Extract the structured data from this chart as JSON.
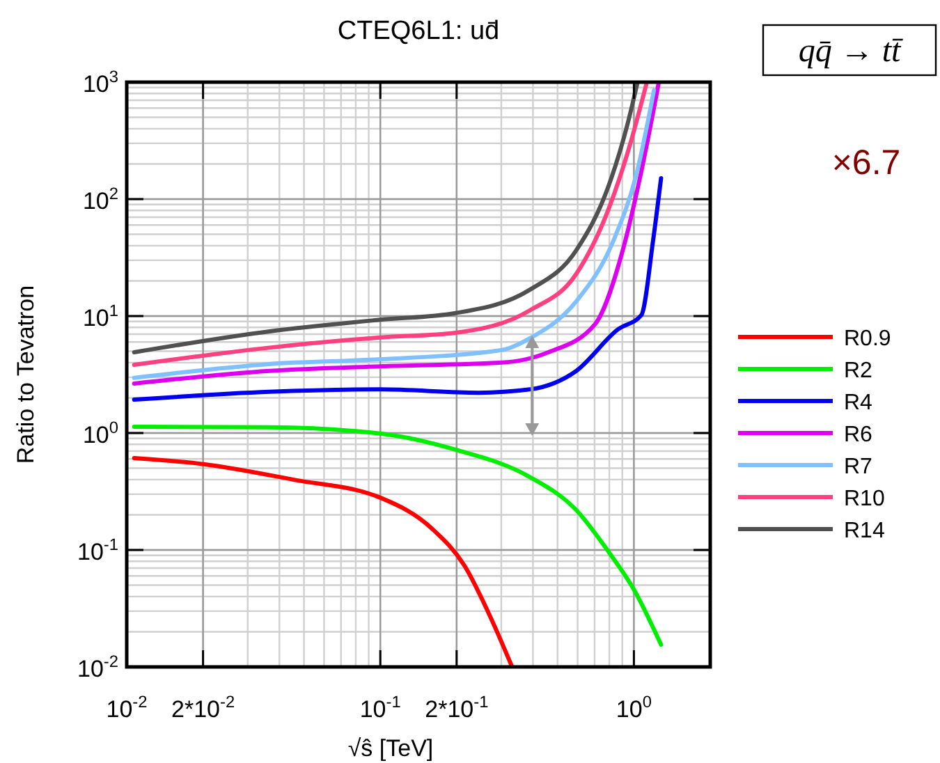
{
  "chart_data": {
    "type": "line",
    "title": "CTEQ6L1: ud̄",
    "xlabel": "√ŝ  [TeV]",
    "ylabel": "Ratio to Tevatron",
    "annotations": [
      "qq̄ → tt̄",
      "×6.7"
    ],
    "log": "xy",
    "grid": true,
    "legend": "right",
    "line_style": "solid",
    "xlim": [
      0.01,
      2
    ],
    "ylim": [
      0.01,
      1000
    ],
    "xticks": [
      {
        "value": 0.01,
        "label": "10$^{-2}$"
      },
      {
        "value": 0.02,
        "label": "2*10$^{-2}$"
      },
      {
        "value": 0.1,
        "label": "10$^{-1}$"
      },
      {
        "value": 0.2,
        "label": "2*10$^{-1}$"
      },
      {
        "value": 1,
        "label": "10$^{0}$"
      }
    ],
    "yticks": [
      {
        "value": 0.01,
        "label": "10$^{-2}$"
      },
      {
        "value": 0.1,
        "label": "10$^{-1}$"
      },
      {
        "value": 1,
        "label": "10$^{0}$"
      },
      {
        "value": 10,
        "label": "10$^{1}$"
      },
      {
        "value": 100,
        "label": "10$^{2}$"
      },
      {
        "value": 1000,
        "label": "10$^{3}$"
      }
    ],
    "series": [
      {
        "name": "R0.9",
        "color": "#ff0000",
        "x": [
          0.0107,
          0.0203,
          0.0452,
          0.1,
          0.16,
          0.215,
          0.277,
          0.331
        ],
        "values": [
          0.61,
          0.54,
          0.4,
          0.28,
          0.152,
          0.073,
          0.0244,
          0.01
        ]
      },
      {
        "name": "R2",
        "color": "#00ee00",
        "x": [
          0.0107,
          0.0366,
          0.1,
          0.198,
          0.389,
          0.593,
          0.796,
          1.0,
          1.28
        ],
        "values": [
          1.13,
          1.12,
          0.99,
          0.72,
          0.42,
          0.219,
          0.096,
          0.046,
          0.0155
        ]
      },
      {
        "name": "R4",
        "color": "#0000ee",
        "x": [
          0.0107,
          0.0366,
          0.1,
          0.244,
          0.389,
          0.593,
          0.865,
          1.07,
          1.19,
          1.28
        ],
        "values": [
          1.93,
          2.25,
          2.36,
          2.21,
          2.36,
          3.4,
          7.7,
          10.2,
          44,
          151
        ]
      },
      {
        "name": "R6",
        "color": "#dd00ee",
        "x": [
          0.0107,
          0.0366,
          0.1,
          0.302,
          0.46,
          0.702,
          0.904,
          1.07,
          1.25
        ],
        "values": [
          2.65,
          3.4,
          3.72,
          4.0,
          4.9,
          8.5,
          36.6,
          173,
          962
        ]
      },
      {
        "name": "R7",
        "color": "#80c0ff",
        "x": [
          0.0107,
          0.0366,
          0.1,
          0.302,
          0.389,
          0.593,
          0.83,
          1.03,
          1.2
        ],
        "values": [
          2.96,
          3.89,
          4.27,
          5.13,
          6.46,
          13.4,
          44,
          173,
          855
        ]
      },
      {
        "name": "R10",
        "color": "#ff4080",
        "x": [
          0.0107,
          0.0366,
          0.1,
          0.198,
          0.389,
          0.593,
          0.796,
          0.98,
          1.12
        ],
        "values": [
          3.83,
          5.37,
          6.56,
          7.2,
          11.2,
          23,
          83,
          327,
          962
        ]
      },
      {
        "name": "R14",
        "color": "#505050",
        "x": [
          0.0107,
          0.0366,
          0.1,
          0.198,
          0.389,
          0.593,
          0.796,
          0.942,
          1.03
        ],
        "values": [
          4.9,
          7.4,
          9.3,
          10.6,
          16.8,
          36.6,
          131,
          431,
          962
        ]
      }
    ]
  }
}
